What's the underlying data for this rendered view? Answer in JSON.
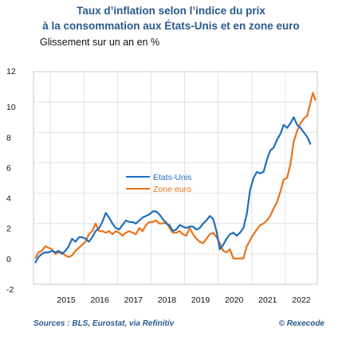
{
  "chart_data": {
    "type": "line",
    "title_line1": "Taux d’inflation selon l’indice du prix",
    "title_line2": "à la consommation aux États-Unis et en zone euro",
    "subtitle": "Glissement sur un an en %",
    "ylim": [
      -2,
      12
    ],
    "yticks": [
      "-2",
      "0",
      "2",
      "4",
      "6",
      "8",
      "10",
      "12"
    ],
    "xlim": [
      2014.5,
      2022.95
    ],
    "xticks": [
      {
        "label": "2015",
        "x": 2015.0
      },
      {
        "label": "2016",
        "x": 2016.0
      },
      {
        "label": "2017",
        "x": 2017.0
      },
      {
        "label": "2018",
        "x": 2018.0
      },
      {
        "label": "2019",
        "x": 2019.0
      },
      {
        "label": "2020",
        "x": 2020.0
      },
      {
        "label": "2021",
        "x": 2021.0
      },
      {
        "label": "2022",
        "x": 2022.0
      }
    ],
    "legend_position": "center",
    "series": [
      {
        "name": "Etats-Unis",
        "color": "#1f6fc0",
        "points": [
          [
            2014.55,
            -0.6
          ],
          [
            2014.65,
            -0.2
          ],
          [
            2014.75,
            0.0
          ],
          [
            2014.85,
            0.1
          ],
          [
            2014.95,
            0.1
          ],
          [
            2015.05,
            0.2
          ],
          [
            2015.15,
            0.1
          ],
          [
            2015.25,
            0.2
          ],
          [
            2015.35,
            0.0
          ],
          [
            2015.45,
            0.2
          ],
          [
            2015.55,
            0.5
          ],
          [
            2015.65,
            1.0
          ],
          [
            2015.75,
            0.8
          ],
          [
            2015.85,
            1.1
          ],
          [
            2015.95,
            1.1
          ],
          [
            2016.05,
            1.0
          ],
          [
            2016.15,
            0.8
          ],
          [
            2016.25,
            1.1
          ],
          [
            2016.35,
            1.5
          ],
          [
            2016.45,
            1.7
          ],
          [
            2016.55,
            2.1
          ],
          [
            2016.65,
            2.7
          ],
          [
            2016.75,
            2.4
          ],
          [
            2016.85,
            2.0
          ],
          [
            2016.95,
            1.7
          ],
          [
            2017.05,
            1.6
          ],
          [
            2017.15,
            1.9
          ],
          [
            2017.25,
            2.2
          ],
          [
            2017.35,
            2.1
          ],
          [
            2017.45,
            2.1
          ],
          [
            2017.55,
            2.0
          ],
          [
            2017.65,
            2.2
          ],
          [
            2017.75,
            2.4
          ],
          [
            2017.85,
            2.5
          ],
          [
            2017.95,
            2.6
          ],
          [
            2018.05,
            2.8
          ],
          [
            2018.15,
            2.8
          ],
          [
            2018.25,
            2.6
          ],
          [
            2018.35,
            2.3
          ],
          [
            2018.45,
            2.0
          ],
          [
            2018.55,
            1.9
          ],
          [
            2018.65,
            1.5
          ],
          [
            2018.75,
            1.6
          ],
          [
            2018.85,
            1.9
          ],
          [
            2018.95,
            1.8
          ],
          [
            2019.05,
            1.7
          ],
          [
            2019.15,
            1.8
          ],
          [
            2019.25,
            1.8
          ],
          [
            2019.35,
            1.6
          ],
          [
            2019.45,
            1.7
          ],
          [
            2019.55,
            2.0
          ],
          [
            2019.65,
            2.2
          ],
          [
            2019.75,
            2.5
          ],
          [
            2019.85,
            2.3
          ],
          [
            2019.95,
            1.5
          ],
          [
            2020.05,
            0.3
          ],
          [
            2020.15,
            0.6
          ],
          [
            2020.25,
            1.0
          ],
          [
            2020.35,
            1.3
          ],
          [
            2020.45,
            1.4
          ],
          [
            2020.55,
            1.2
          ],
          [
            2020.65,
            1.4
          ],
          [
            2020.75,
            1.7
          ],
          [
            2020.85,
            2.6
          ],
          [
            2020.95,
            4.2
          ],
          [
            2021.05,
            5.0
          ],
          [
            2021.15,
            5.4
          ],
          [
            2021.25,
            5.3
          ],
          [
            2021.35,
            5.4
          ],
          [
            2021.45,
            6.2
          ],
          [
            2021.55,
            6.8
          ],
          [
            2021.65,
            7.0
          ],
          [
            2021.75,
            7.5
          ],
          [
            2021.85,
            7.9
          ],
          [
            2021.95,
            8.5
          ],
          [
            2022.05,
            8.3
          ],
          [
            2022.15,
            8.6
          ],
          [
            2022.25,
            9.0
          ],
          [
            2022.35,
            8.5
          ],
          [
            2022.45,
            8.3
          ],
          [
            2022.55,
            8.0
          ],
          [
            2022.65,
            7.7
          ],
          [
            2022.75,
            7.2
          ]
        ]
      },
      {
        "name": "Zone euro",
        "color": "#e8731a",
        "points": [
          [
            2014.55,
            -0.3
          ],
          [
            2014.65,
            0.1
          ],
          [
            2014.75,
            0.2
          ],
          [
            2014.85,
            0.5
          ],
          [
            2014.95,
            0.4
          ],
          [
            2015.05,
            0.3
          ],
          [
            2015.15,
            0.0
          ],
          [
            2015.25,
            0.1
          ],
          [
            2015.35,
            0.1
          ],
          [
            2015.45,
            -0.1
          ],
          [
            2015.55,
            -0.2
          ],
          [
            2015.65,
            -0.1
          ],
          [
            2015.75,
            0.2
          ],
          [
            2015.85,
            0.4
          ],
          [
            2015.95,
            0.6
          ],
          [
            2016.05,
            0.8
          ],
          [
            2016.15,
            1.3
          ],
          [
            2016.25,
            1.5
          ],
          [
            2016.35,
            2.0
          ],
          [
            2016.45,
            1.5
          ],
          [
            2016.55,
            1.5
          ],
          [
            2016.65,
            1.4
          ],
          [
            2016.75,
            1.5
          ],
          [
            2016.85,
            1.3
          ],
          [
            2016.95,
            1.5
          ],
          [
            2017.05,
            1.4
          ],
          [
            2017.15,
            1.2
          ],
          [
            2017.25,
            1.4
          ],
          [
            2017.35,
            1.5
          ],
          [
            2017.45,
            1.4
          ],
          [
            2017.55,
            1.3
          ],
          [
            2017.65,
            1.7
          ],
          [
            2017.75,
            1.5
          ],
          [
            2017.85,
            1.9
          ],
          [
            2017.95,
            2.1
          ],
          [
            2018.05,
            2.1
          ],
          [
            2018.15,
            2.2
          ],
          [
            2018.25,
            2.0
          ],
          [
            2018.35,
            2.0
          ],
          [
            2018.45,
            2.1
          ],
          [
            2018.55,
            1.7
          ],
          [
            2018.65,
            1.4
          ],
          [
            2018.75,
            1.4
          ],
          [
            2018.85,
            1.5
          ],
          [
            2018.95,
            1.3
          ],
          [
            2019.05,
            1.2
          ],
          [
            2019.15,
            1.7
          ],
          [
            2019.25,
            1.3
          ],
          [
            2019.35,
            1.0
          ],
          [
            2019.45,
            0.8
          ],
          [
            2019.55,
            0.7
          ],
          [
            2019.65,
            1.0
          ],
          [
            2019.75,
            1.3
          ],
          [
            2019.85,
            1.4
          ],
          [
            2019.95,
            1.1
          ],
          [
            2020.05,
            0.7
          ],
          [
            2020.15,
            0.2
          ],
          [
            2020.25,
            0.1
          ],
          [
            2020.35,
            0.3
          ],
          [
            2020.45,
            -0.3
          ],
          [
            2020.55,
            -0.3
          ],
          [
            2020.65,
            -0.3
          ],
          [
            2020.75,
            -0.3
          ],
          [
            2020.85,
            0.5
          ],
          [
            2020.95,
            0.9
          ],
          [
            2021.05,
            1.3
          ],
          [
            2021.15,
            1.6
          ],
          [
            2021.25,
            1.9
          ],
          [
            2021.35,
            2.0
          ],
          [
            2021.45,
            2.2
          ],
          [
            2021.55,
            2.5
          ],
          [
            2021.65,
            3.0
          ],
          [
            2021.75,
            3.4
          ],
          [
            2021.85,
            4.1
          ],
          [
            2021.95,
            4.9
          ],
          [
            2022.05,
            5.0
          ],
          [
            2022.15,
            5.9
          ],
          [
            2022.25,
            7.4
          ],
          [
            2022.35,
            8.1
          ],
          [
            2022.45,
            8.6
          ],
          [
            2022.55,
            8.9
          ],
          [
            2022.65,
            9.1
          ],
          [
            2022.75,
            10.0
          ],
          [
            2022.82,
            10.6
          ],
          [
            2022.9,
            10.1
          ]
        ]
      }
    ]
  },
  "footer": {
    "sources": "Sources : BLS, Eurostat, via Refinitiv",
    "copyright": "© Rexecode"
  }
}
